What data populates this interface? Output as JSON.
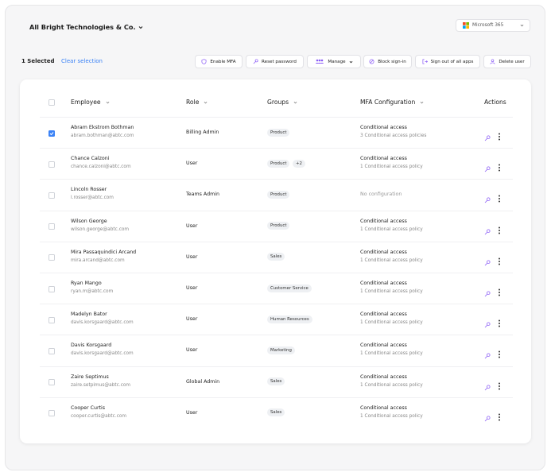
{
  "header": {
    "org": "All Bright Technologies & Co.",
    "tenant": "Microsoft 365"
  },
  "toolbar": {
    "selected": "1 Selected",
    "clear": "Clear selection",
    "actions": [
      "Enable MFA",
      "Reset password",
      "Manage",
      "Block sign-in",
      "Sign out of all apps",
      "Delete user"
    ]
  },
  "table": {
    "columns": [
      "Employee",
      "Role",
      "Groups",
      "MFA Configuration",
      "Actions"
    ],
    "rows": [
      {
        "checked": true,
        "name": "Abram Ekstrom Bothman",
        "email": "abram.bothman@abtc.com",
        "role": "Billing Admin",
        "groups": [
          "Product"
        ],
        "mfa": "Conditional access",
        "policy": "3 Conditional access policies"
      },
      {
        "checked": false,
        "name": "Chance Calzoni",
        "email": "chance.calzoni@abtc.com",
        "role": "User",
        "groups": [
          "Product"
        ],
        "extra": "+2",
        "mfa": "Conditional access",
        "policy": "1 Conditional access policy"
      },
      {
        "checked": false,
        "name": "Lincoln Rosser",
        "email": "l.rosser@abtc.com",
        "role": "Teams Admin",
        "groups": [
          "Product"
        ],
        "mfa": "No configuration"
      },
      {
        "checked": false,
        "name": "Wilson George",
        "email": "wilson.george@abtc.com",
        "role": "User",
        "groups": [
          "Product"
        ],
        "mfa": "Conditional access",
        "policy": "1 Conditional access policy"
      },
      {
        "checked": false,
        "name": "Mira Passaquindici Arcand",
        "email": "mira.arcand@abtc.com",
        "role": "User",
        "groups": [
          "Sales"
        ],
        "mfa": "Conditional access",
        "policy": "1 Conditional access policy"
      },
      {
        "checked": false,
        "name": "Ryan Mango",
        "email": "ryan.m@abtc.com",
        "role": "User",
        "groups": [
          "Customer Service"
        ],
        "mfa": "Conditional access",
        "policy": "1 Conditional access policy"
      },
      {
        "checked": false,
        "name": "Madelyn Bator",
        "email": "davis.korsgaard@abtc.com",
        "role": "User",
        "groups": [
          "Human Resources"
        ],
        "mfa": "Conditional access",
        "policy": "1 Conditional access policy"
      },
      {
        "checked": false,
        "name": "Davis Korsgaard",
        "email": "davis.korsgaard@abtc.com",
        "role": "User",
        "groups": [
          "Marketing"
        ],
        "mfa": "Conditional access",
        "policy": "1 Conditional access policy"
      },
      {
        "checked": false,
        "name": "Zaire Septimus",
        "email": "zaire.setpimus@abtc.com",
        "role": "Global Admin",
        "groups": [
          "Sales"
        ],
        "mfa": "Conditional access",
        "policy": "1 Conditional access policy"
      },
      {
        "checked": false,
        "name": "Cooper Curtis",
        "email": "cooper.curtis@abtc.com",
        "role": "User",
        "groups": [
          "Sales"
        ],
        "mfa": "Conditional access",
        "policy": "1 Conditional access policy"
      }
    ]
  }
}
